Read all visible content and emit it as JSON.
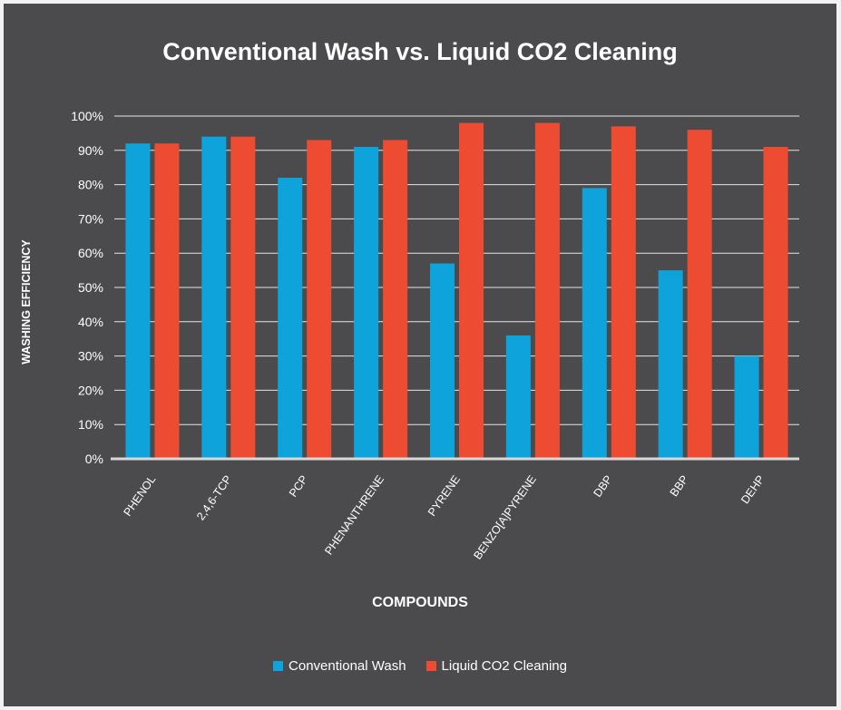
{
  "colors": {
    "background": "#4b4b4d",
    "conventional": "#0fa3dc",
    "liquid_co2": "#ee4c32",
    "grid": "#ffffff",
    "text": "#ffffff"
  },
  "chart_data": {
    "type": "bar",
    "title": "Conventional Wash vs. Liquid CO2 Cleaning",
    "xlabel": "COMPOUNDS",
    "ylabel": "WASHING EFFICIENCY",
    "ylim": [
      0,
      100
    ],
    "yticks": [
      "0%",
      "10%",
      "20%",
      "30%",
      "40%",
      "50%",
      "60%",
      "70%",
      "80%",
      "90%",
      "100%"
    ],
    "grid": true,
    "legend_position": "bottom",
    "categories": [
      "PHENOL",
      "2,4,6-TCP",
      "PCP",
      "PHENANTHRENE",
      "PYRENE",
      "BENZO[A]PYRENE",
      "DBP",
      "BBP",
      "DEHP"
    ],
    "series": [
      {
        "name": "Conventional Wash",
        "values": [
          92,
          94,
          82,
          91,
          57,
          36,
          79,
          55,
          30
        ]
      },
      {
        "name": "Liquid CO2 Cleaning",
        "values": [
          92,
          94,
          93,
          93,
          98,
          98,
          97,
          96,
          91
        ]
      }
    ]
  }
}
